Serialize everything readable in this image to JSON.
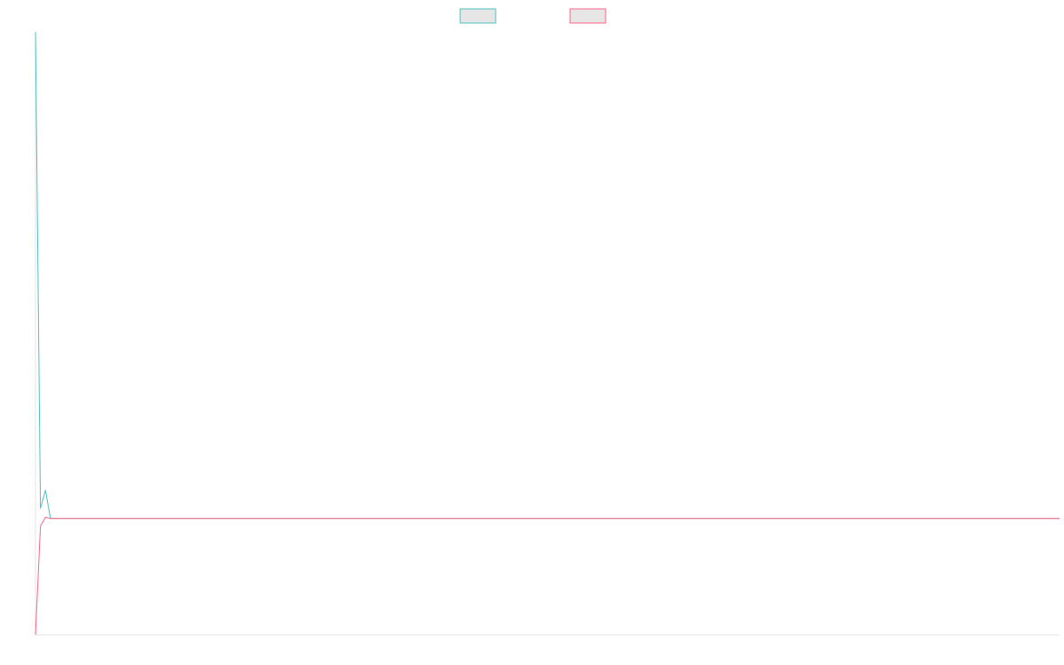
{
  "chart_data": {
    "type": "line",
    "title": "",
    "xlabel": "",
    "ylabel": "",
    "x_count": 206,
    "ylim": [
      0,
      100
    ],
    "grid": false,
    "legend_position": "top-center",
    "series": [
      {
        "name": "",
        "color": "#4bc0c0",
        "fill": "#e6e6e6",
        "values": [
          100,
          21,
          24,
          19.3,
          19.3
        ]
      },
      {
        "name": "",
        "color": "#ff6384",
        "fill": "#e6e6e6",
        "values": [
          0,
          18,
          19.5,
          19.3,
          19.3
        ]
      }
    ]
  }
}
